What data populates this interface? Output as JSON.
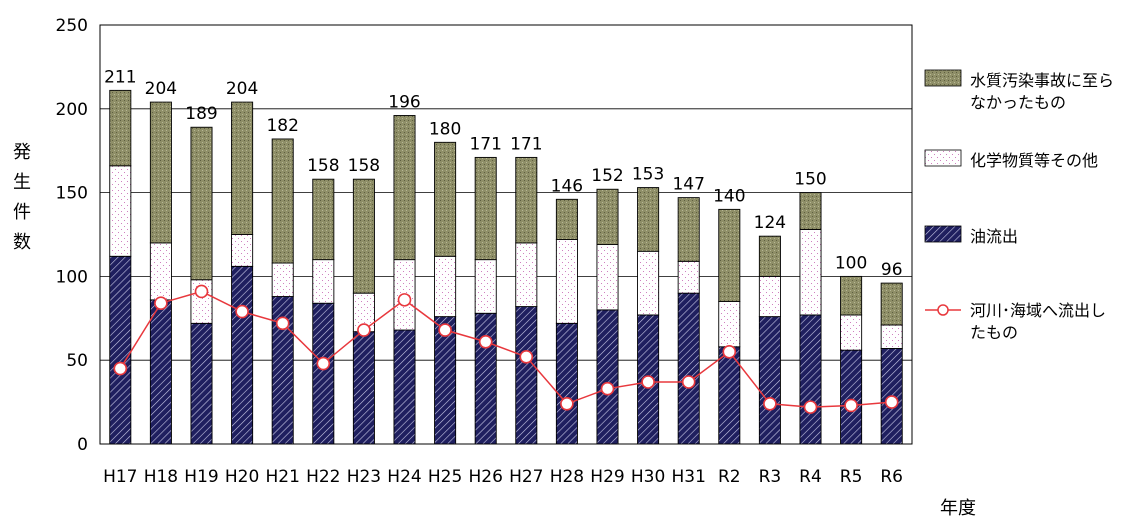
{
  "chart_data": {
    "type": "bar",
    "stacked": true,
    "categories": [
      "H17",
      "H18",
      "H19",
      "H20",
      "H21",
      "H22",
      "H23",
      "H24",
      "H25",
      "H26",
      "H27",
      "H28",
      "H29",
      "H30",
      "H31",
      "R2",
      "R3",
      "R4",
      "R5",
      "R6"
    ],
    "series": [
      {
        "name": "油流出",
        "values": [
          112,
          86,
          72,
          106,
          88,
          84,
          67,
          68,
          76,
          78,
          82,
          72,
          80,
          77,
          90,
          58,
          76,
          77,
          56,
          57
        ],
        "color": "#1f1f5f",
        "pattern": "diagonal-hatch"
      },
      {
        "name": "化学物質等その他",
        "values": [
          54,
          34,
          26,
          19,
          20,
          26,
          23,
          42,
          36,
          32,
          38,
          50,
          39,
          38,
          19,
          27,
          24,
          51,
          21,
          14
        ],
        "color": "#ffffff",
        "pattern": "pink-dots"
      },
      {
        "name": "水質汚染事故に至らなかったもの",
        "values": [
          45,
          84,
          91,
          79,
          74,
          48,
          68,
          86,
          68,
          61,
          51,
          24,
          33,
          38,
          38,
          55,
          24,
          22,
          23,
          25
        ],
        "color": "#8c8c64",
        "pattern": "olive-dots"
      }
    ],
    "totals": [
      211,
      204,
      189,
      204,
      182,
      158,
      158,
      196,
      180,
      171,
      171,
      146,
      152,
      153,
      147,
      140,
      124,
      150,
      100,
      96
    ],
    "line": {
      "name": "河川･海域へ流出したもの",
      "values": [
        45,
        84,
        91,
        79,
        72,
        48,
        68,
        86,
        68,
        61,
        52,
        24,
        33,
        37,
        37,
        55,
        24,
        22,
        23,
        25
      ],
      "color": "#e8383d"
    },
    "ylim": [
      0,
      250
    ],
    "yticks": [
      0,
      50,
      100,
      150,
      200,
      250
    ],
    "ylabel": "発生件数",
    "xlabel": "年度",
    "grid": true,
    "legend_position": "right"
  }
}
